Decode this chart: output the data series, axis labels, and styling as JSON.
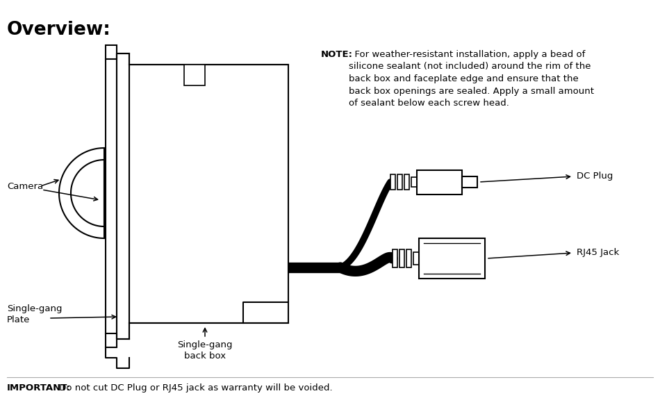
{
  "title": "Overview:",
  "important_bold": "IMPORTANT:",
  "important_rest": " Do not cut DC Plug or RJ45 jack as warranty will be voided.",
  "note_bold": "NOTE:",
  "note_text": "  For weather-resistant installation, apply a bead of\nsilicone sealant (not included) around the rim of the\nback box and faceplate edge and ensure that the\nback box openings are sealed. Apply a small amount\nof sealant below each screw head.",
  "label_camera": "Camera",
  "label_plate": "Single-gang\nPlate",
  "label_backbox": "Single-gang\nback box",
  "label_dc": "DC Plug",
  "label_rj45": "RJ45 Jack",
  "bg_color": "#ffffff",
  "line_color": "#000000",
  "text_color": "#000000"
}
